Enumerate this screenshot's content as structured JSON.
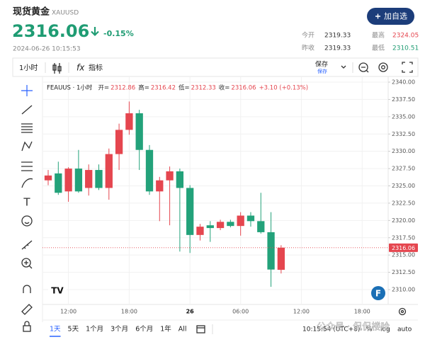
{
  "header": {
    "title": "现货黄金",
    "symbol": "XAUUSD",
    "button": "加自选",
    "price": "2316.06",
    "change": "-0.15%",
    "time": "2024-06-26 10:15:53",
    "stats": [
      {
        "label": "今开",
        "value": "2319.33"
      },
      {
        "label": "最高",
        "value": "2324.05"
      },
      {
        "label": "昨收",
        "value": "2319.33"
      },
      {
        "label": "最低",
        "value": "2310.51"
      }
    ]
  },
  "toolbar": {
    "interval": "1小时",
    "indicators": "指标",
    "save": "保存",
    "save_sub": "保存"
  },
  "chart_data": {
    "type": "candlestick",
    "legend": {
      "symbol": "FEAUUS · 1小时",
      "labels": [
        "开=",
        "高=",
        "低=",
        "收="
      ],
      "change": "+3.10 (+0.13%)"
    },
    "open": [
      2325.8,
      2326.8,
      2324.2,
      2327.5,
      2324.7,
      2327.3,
      2324.7,
      2329.6,
      2333.1,
      2335.5,
      2330.2,
      2324.2,
      2325.8,
      2327.1,
      2324.7,
      2317.9,
      2319.3,
      2318.9,
      2319.8,
      2319.2,
      2320.7,
      2319.9,
      2318.3,
      2312.86
    ],
    "high": [
      2327.3,
      2328.5,
      2327.7,
      2330.2,
      2328.1,
      2328.1,
      2330.4,
      2334.0,
      2337.2,
      2336.0,
      2330.9,
      2326.3,
      2327.8,
      2327.5,
      2325.1,
      2319.5,
      2319.9,
      2320.1,
      2320.1,
      2321.2,
      2321.2,
      2324.0,
      2321.2,
      2316.42
    ],
    "low": [
      2325.1,
      2323.7,
      2322.7,
      2324.0,
      2323.6,
      2324.4,
      2323.0,
      2327.3,
      2332.4,
      2327.3,
      2323.7,
      2319.9,
      2319.3,
      2315.5,
      2315.3,
      2317.1,
      2316.9,
      2318.6,
      2319.0,
      2317.8,
      2319.1,
      2318.1,
      2310.4,
      2312.33
    ],
    "close": [
      2326.5,
      2324.0,
      2327.5,
      2324.2,
      2327.3,
      2324.7,
      2329.6,
      2333.1,
      2335.5,
      2330.2,
      2324.2,
      2325.8,
      2327.1,
      2324.7,
      2317.9,
      2319.1,
      2318.9,
      2319.8,
      2319.2,
      2320.7,
      2319.9,
      2318.3,
      2312.9,
      2316.06
    ],
    "up_color": "#e5464f",
    "down_color": "#23a27a",
    "xlim": [
      -0.56,
      33.57
    ],
    "xticks": [
      {
        "value": 2,
        "label": "12:00"
      },
      {
        "value": 8,
        "label": "18:00"
      },
      {
        "value": 14,
        "label": "26"
      },
      {
        "value": 19,
        "label": "06:00"
      },
      {
        "value": 25,
        "label": "12:00"
      },
      {
        "value": 31,
        "label": "18:00"
      }
    ],
    "ylim": [
      2307.85,
      2340.82
    ],
    "yticks": [
      {
        "value": 2310,
        "label": "2310.00"
      },
      {
        "value": 2312.5,
        "label": "2312.50"
      },
      {
        "value": 2315,
        "label": "2315.00"
      },
      {
        "value": 2317.5,
        "label": "2317.50"
      },
      {
        "value": 2320,
        "label": "2320.00"
      },
      {
        "value": 2322.5,
        "label": "2322.50"
      },
      {
        "value": 2325,
        "label": "2325.00"
      },
      {
        "value": 2327.5,
        "label": "2327.50"
      },
      {
        "value": 2330,
        "label": "2330.00"
      },
      {
        "value": 2332.5,
        "label": "2332.50"
      },
      {
        "value": 2335,
        "label": "2335.00"
      },
      {
        "value": 2337.5,
        "label": "2337.50"
      },
      {
        "value": 2340,
        "label": "2340.00"
      }
    ],
    "grid": true
  },
  "bottom_bar": {
    "ranges": [
      "1天",
      "5天",
      "1个月",
      "3个月",
      "6个月",
      "1年",
      "All"
    ],
    "time": "10:15:54 (UTC+8)",
    "percent": "%",
    "log": "log",
    "auto": "auto"
  },
  "watermark": "公众号 · 侃侃楼哈"
}
